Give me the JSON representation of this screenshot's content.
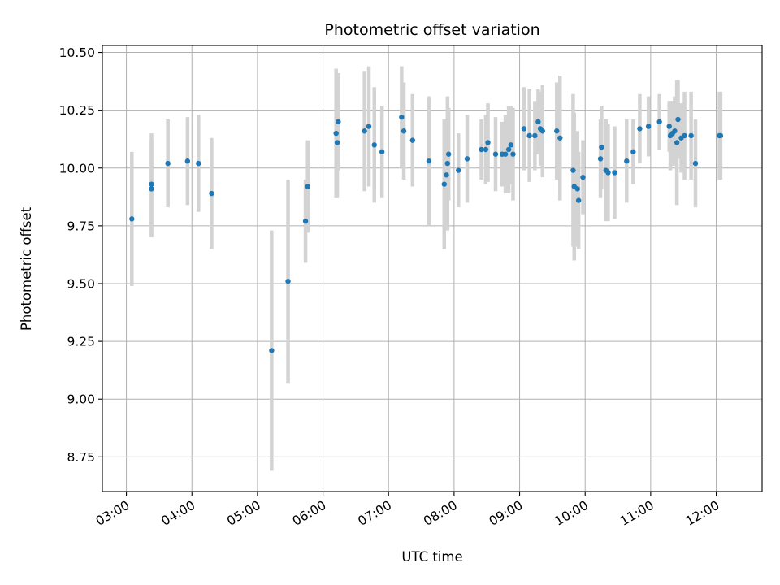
{
  "chart_data": {
    "type": "scatter",
    "title": "Photometric offset variation",
    "xlabel": "UTC time",
    "ylabel": "Photometric offset",
    "x_tick_labels": [
      "03:00",
      "04:00",
      "05:00",
      "06:00",
      "07:00",
      "08:00",
      "09:00",
      "10:00",
      "11:00",
      "12:00"
    ],
    "y_tick_labels": [
      "8.75",
      "9.00",
      "9.25",
      "9.50",
      "9.75",
      "10.00",
      "10.25",
      "10.50"
    ],
    "xlim": [
      "02:38",
      "12:42"
    ],
    "ylim": [
      8.6,
      10.53
    ],
    "grid": true,
    "colors": {
      "points": "#1f77b4",
      "errorbars": "#d3d3d3",
      "grid": "#b0b0b0"
    },
    "series": [
      {
        "x": [
          "03:05",
          "03:23",
          "03:23",
          "03:38",
          "03:56",
          "04:06",
          "04:18",
          "05:13",
          "05:28",
          "05:44",
          "05:46",
          "06:12",
          "06:13",
          "06:14",
          "06:38",
          "06:42",
          "06:47",
          "06:54",
          "07:12",
          "07:14",
          "07:22",
          "07:37",
          "07:51",
          "07:53",
          "07:54",
          "07:55",
          "08:04",
          "08:12",
          "08:25",
          "08:29",
          "08:31",
          "08:38",
          "08:44",
          "08:47",
          "08:50",
          "08:52",
          "08:54",
          "09:04",
          "09:09",
          "09:14",
          "09:17",
          "09:19",
          "09:21",
          "09:34",
          "09:37",
          "09:49",
          "09:50",
          "09:53",
          "09:54",
          "09:58",
          "10:14",
          "10:15",
          "10:19",
          "10:21",
          "10:27",
          "10:38",
          "10:44",
          "10:50",
          "10:58",
          "11:08",
          "11:17",
          "11:18",
          "11:20",
          "11:22",
          "11:24",
          "11:25",
          "11:28",
          "11:31",
          "11:37",
          "11:41",
          "12:03",
          "12:04"
        ],
        "y": [
          9.78,
          9.91,
          9.93,
          10.02,
          10.03,
          10.02,
          9.89,
          9.21,
          9.51,
          9.77,
          9.92,
          10.15,
          10.11,
          10.2,
          10.16,
          10.18,
          10.1,
          10.07,
          10.22,
          10.16,
          10.12,
          10.03,
          9.93,
          9.97,
          10.02,
          10.06,
          9.99,
          10.04,
          10.08,
          10.08,
          10.11,
          10.06,
          10.06,
          10.06,
          10.08,
          10.1,
          10.06,
          10.17,
          10.14,
          10.14,
          10.2,
          10.17,
          10.16,
          10.16,
          10.13,
          9.99,
          9.92,
          9.91,
          9.86,
          9.96,
          10.04,
          10.09,
          9.99,
          9.98,
          9.98,
          10.03,
          10.07,
          10.17,
          10.18,
          10.2,
          10.18,
          10.14,
          10.15,
          10.16,
          10.11,
          10.21,
          10.13,
          10.14,
          10.14,
          10.02,
          10.14,
          10.14
        ],
        "yerr": [
          0.29,
          0.21,
          0.22,
          0.19,
          0.19,
          0.21,
          0.24,
          0.52,
          0.44,
          0.18,
          0.2,
          0.28,
          0.24,
          0.21,
          0.26,
          0.26,
          0.25,
          0.2,
          0.22,
          0.21,
          0.2,
          0.28,
          0.28,
          0.24,
          0.29,
          0.2,
          0.16,
          0.19,
          0.13,
          0.15,
          0.17,
          0.16,
          0.14,
          0.17,
          0.19,
          0.17,
          0.2,
          0.18,
          0.2,
          0.15,
          0.14,
          0.16,
          0.2,
          0.21,
          0.27,
          0.33,
          0.32,
          0.25,
          0.21,
          0.16,
          0.17,
          0.18,
          0.22,
          0.21,
          0.2,
          0.18,
          0.14,
          0.15,
          0.13,
          0.12,
          0.11,
          0.15,
          0.14,
          0.15,
          0.27,
          0.17,
          0.15,
          0.19,
          0.19,
          0.19,
          0.19,
          0.19
        ]
      }
    ]
  }
}
